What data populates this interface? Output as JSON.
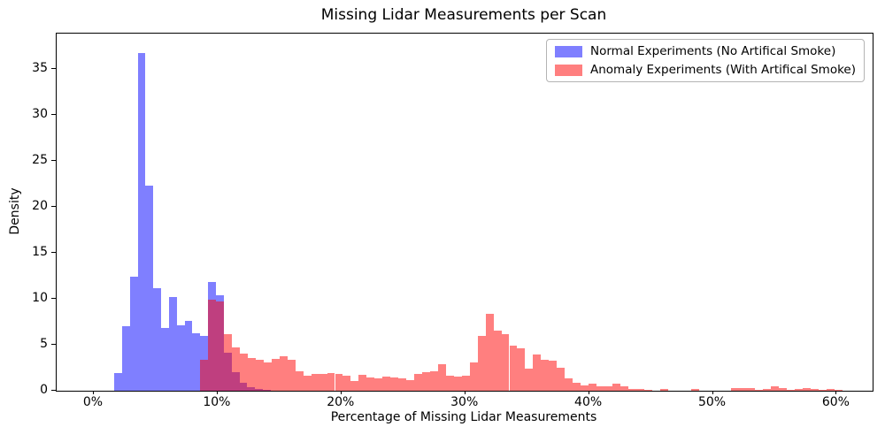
{
  "chart_data": {
    "type": "bar",
    "subtype": "overlaid-density-histogram",
    "title": "Missing Lidar Measurements per Scan",
    "xlabel": "Percentage of Missing Lidar Measurements",
    "ylabel": "Density",
    "xlim": [
      -3.0,
      62.9
    ],
    "ylim": [
      0,
      38.8
    ],
    "grid": false,
    "x_unit": "%",
    "xticks": {
      "values": [
        0,
        10,
        20,
        30,
        40,
        50,
        60
      ],
      "labels": [
        "0%",
        "10%",
        "20%",
        "30%",
        "40%",
        "50%",
        "60%"
      ]
    },
    "yticks": {
      "values": [
        0,
        5,
        10,
        15,
        20,
        25,
        30,
        35
      ],
      "labels": [
        "0",
        "5",
        "10",
        "15",
        "20",
        "25",
        "30",
        "35"
      ]
    },
    "legend": {
      "position": "upper right",
      "entries": [
        {
          "label": "Normal Experiments (No Artifical Smoke)",
          "swatch_color": "rgba(0,0,255,0.5)"
        },
        {
          "label": "Anomaly Experiments (With Artifical Smoke)",
          "swatch_color": "rgba(255,0,0,0.5)"
        }
      ]
    },
    "series": [
      {
        "name": "Normal Experiments (No Artifical Smoke)",
        "color": "rgba(0,0,255,0.5)",
        "bin_start": 1.65,
        "bin_width": 0.632,
        "densities": [
          1.9,
          7.0,
          12.4,
          36.7,
          22.3,
          11.1,
          6.8,
          10.2,
          7.1,
          7.6,
          6.2,
          6.0,
          11.8,
          10.4,
          4.1,
          2.0,
          0.9,
          0.4,
          0.2,
          0.1
        ]
      },
      {
        "name": "Anomaly Experiments (With Artifical Smoke)",
        "color": "rgba(255,0,0,0.5)",
        "bin_start": 8.6,
        "bin_width": 0.64,
        "densities": [
          3.4,
          9.9,
          9.7,
          6.1,
          4.7,
          4.0,
          3.6,
          3.4,
          3.1,
          3.5,
          3.7,
          3.4,
          2.1,
          1.6,
          1.8,
          1.8,
          1.9,
          1.8,
          1.6,
          1.1,
          1.7,
          1.4,
          1.3,
          1.5,
          1.4,
          1.3,
          1.2,
          1.8,
          2.0,
          2.1,
          2.9,
          1.6,
          1.5,
          1.6,
          3.1,
          6.0,
          8.4,
          6.5,
          6.1,
          4.9,
          4.6,
          2.4,
          3.9,
          3.4,
          3.3,
          2.5,
          1.3,
          0.9,
          0.6,
          0.75,
          0.5,
          0.45,
          0.8,
          0.45,
          0.15,
          0.2,
          0.05,
          0,
          0.15,
          0,
          0,
          0,
          0.2,
          0,
          0,
          0,
          0,
          0.25,
          0.25,
          0.25,
          0.1,
          0.2,
          0.5,
          0.3,
          0.1,
          0.15,
          0.25,
          0.15,
          0.1,
          0.2,
          0.05
        ]
      }
    ]
  }
}
